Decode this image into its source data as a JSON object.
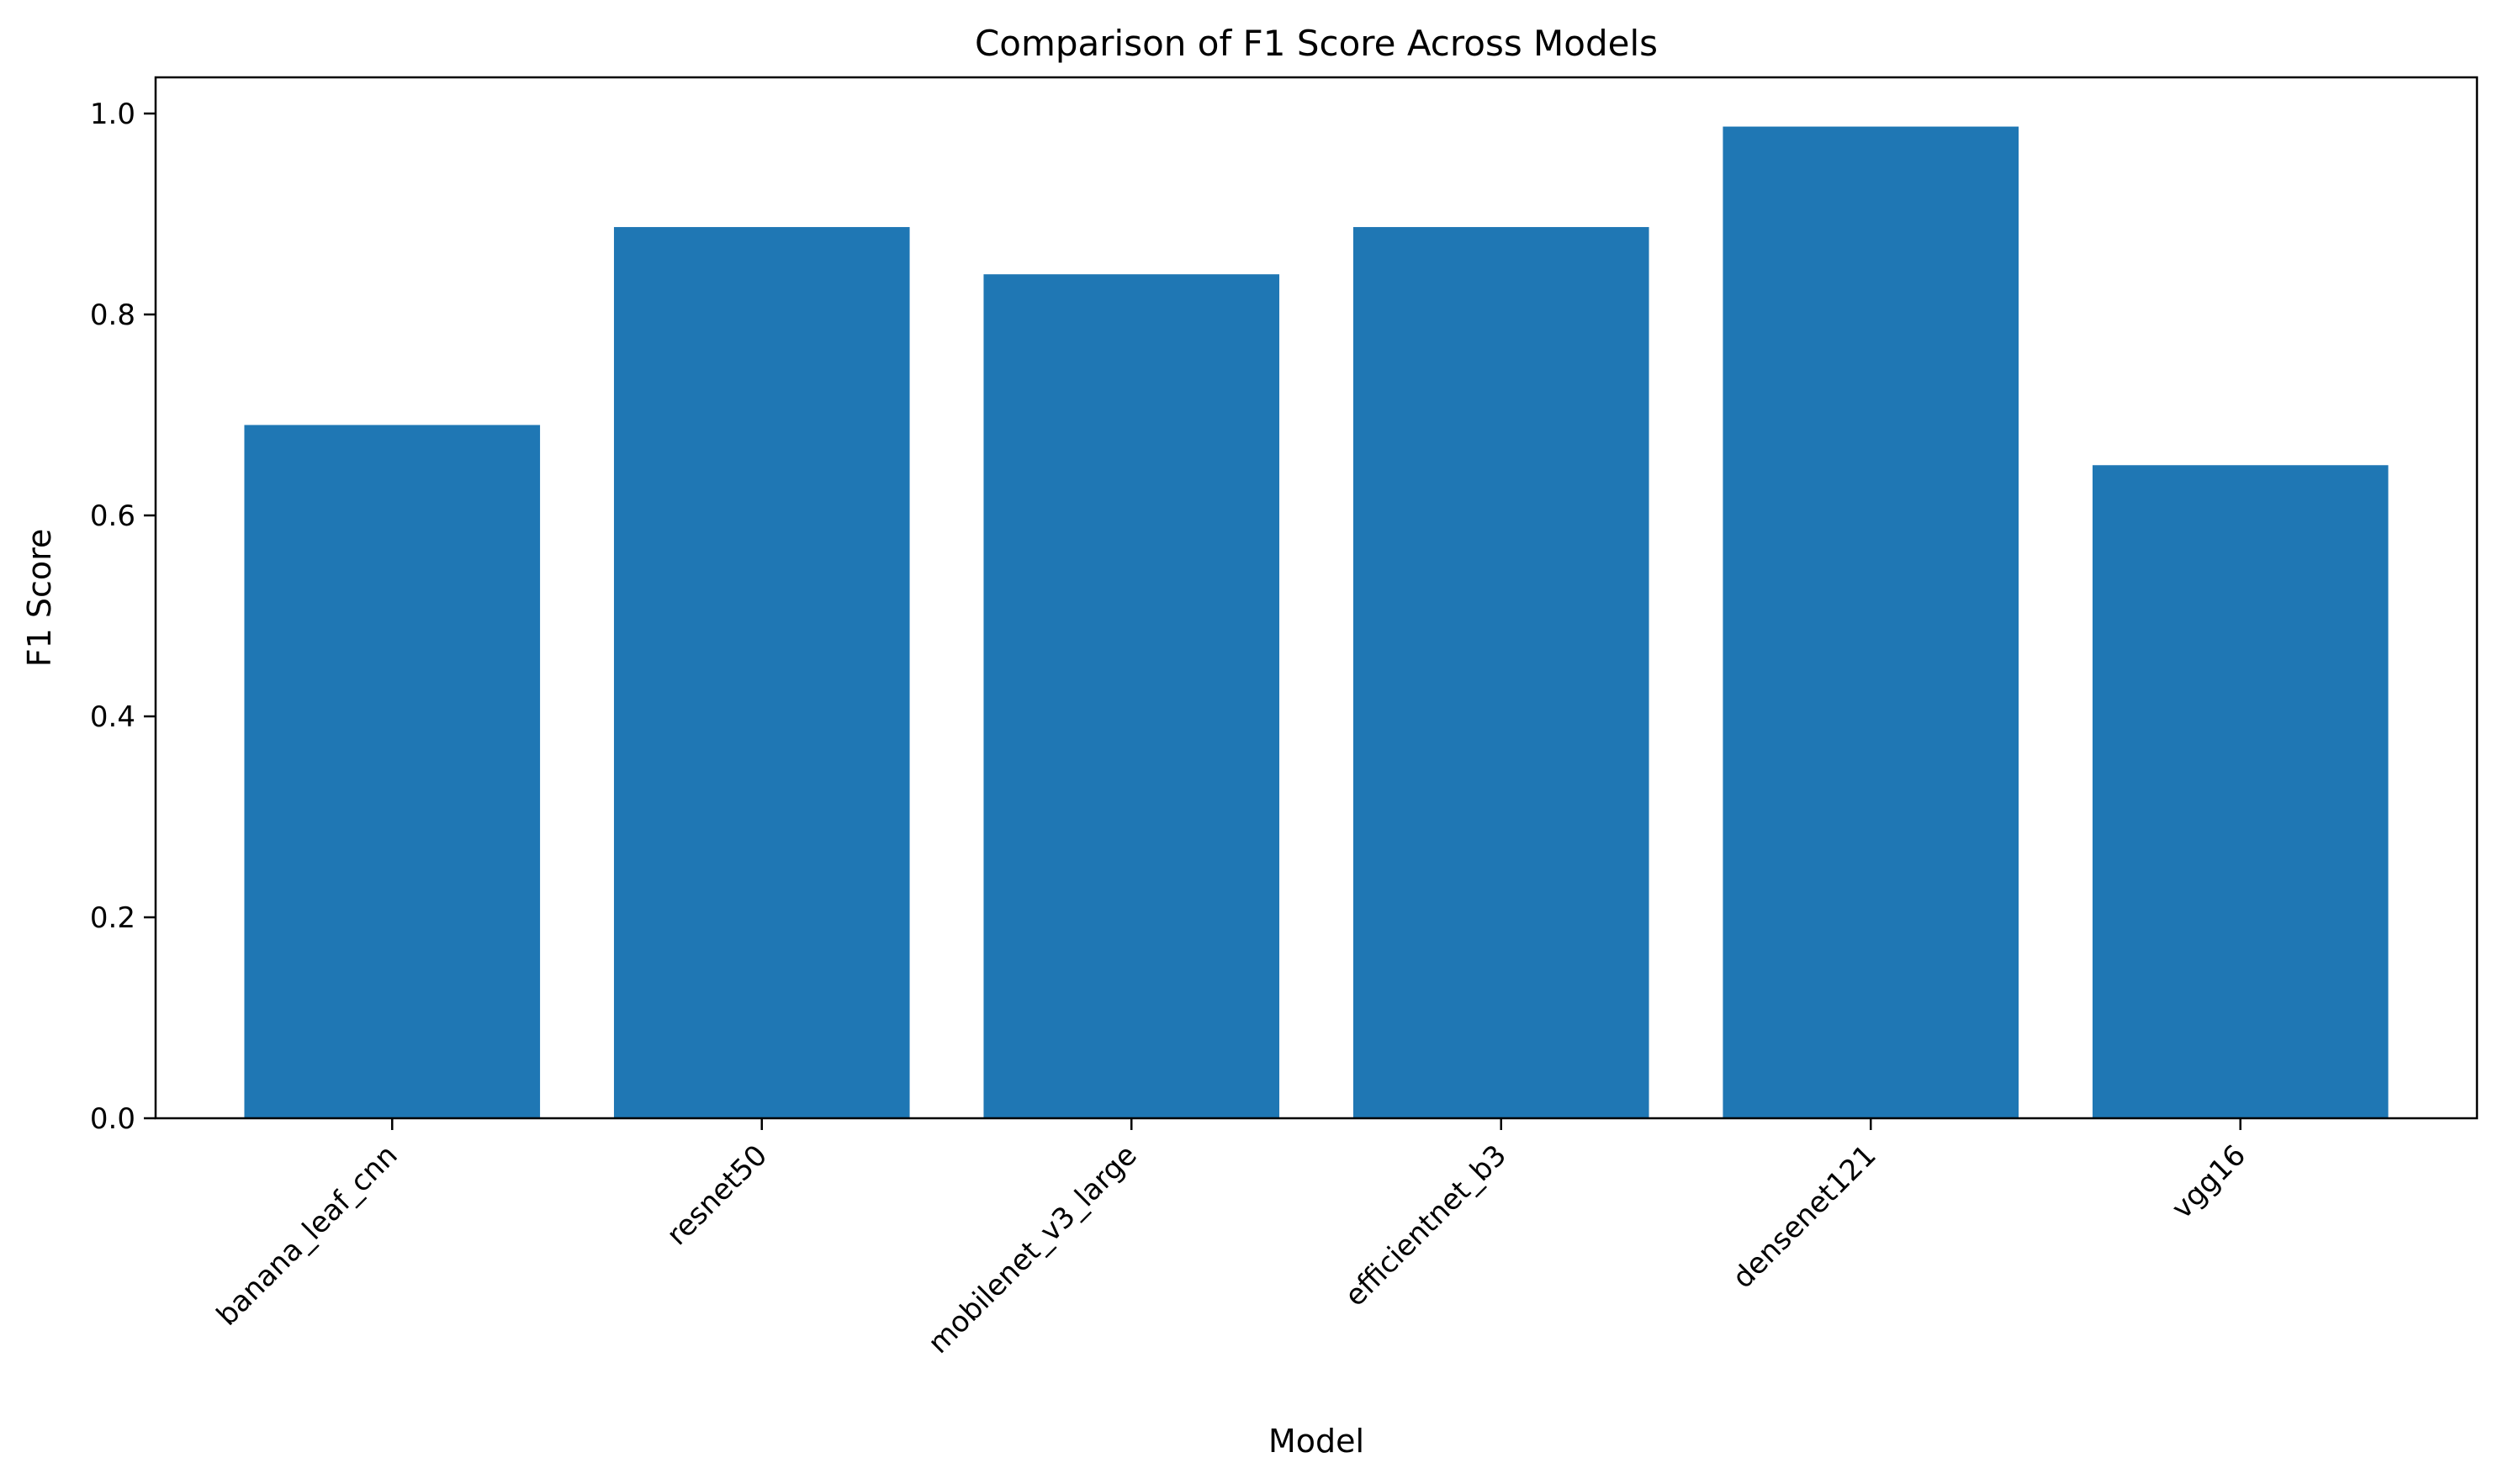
{
  "chart_data": {
    "type": "bar",
    "title": "Comparison of F1 Score Across Models",
    "xlabel": "Model",
    "ylabel": "F1 Score",
    "categories": [
      "banana_leaf_cnn",
      "resnet50",
      "mobilenet_v3_large",
      "efficientnet_b3",
      "densenet121",
      "vgg16"
    ],
    "values": [
      0.69,
      0.887,
      0.84,
      0.887,
      0.987,
      0.65
    ],
    "ylim": [
      0,
      1.036
    ],
    "yticks": [
      0.0,
      0.2,
      0.4,
      0.6,
      0.8,
      1.0
    ],
    "ytick_labels": [
      "0.0",
      "0.2",
      "0.4",
      "0.6",
      "0.8",
      "1.0"
    ],
    "bar_color": "#1f77b4",
    "grid": false,
    "legend": "none"
  }
}
